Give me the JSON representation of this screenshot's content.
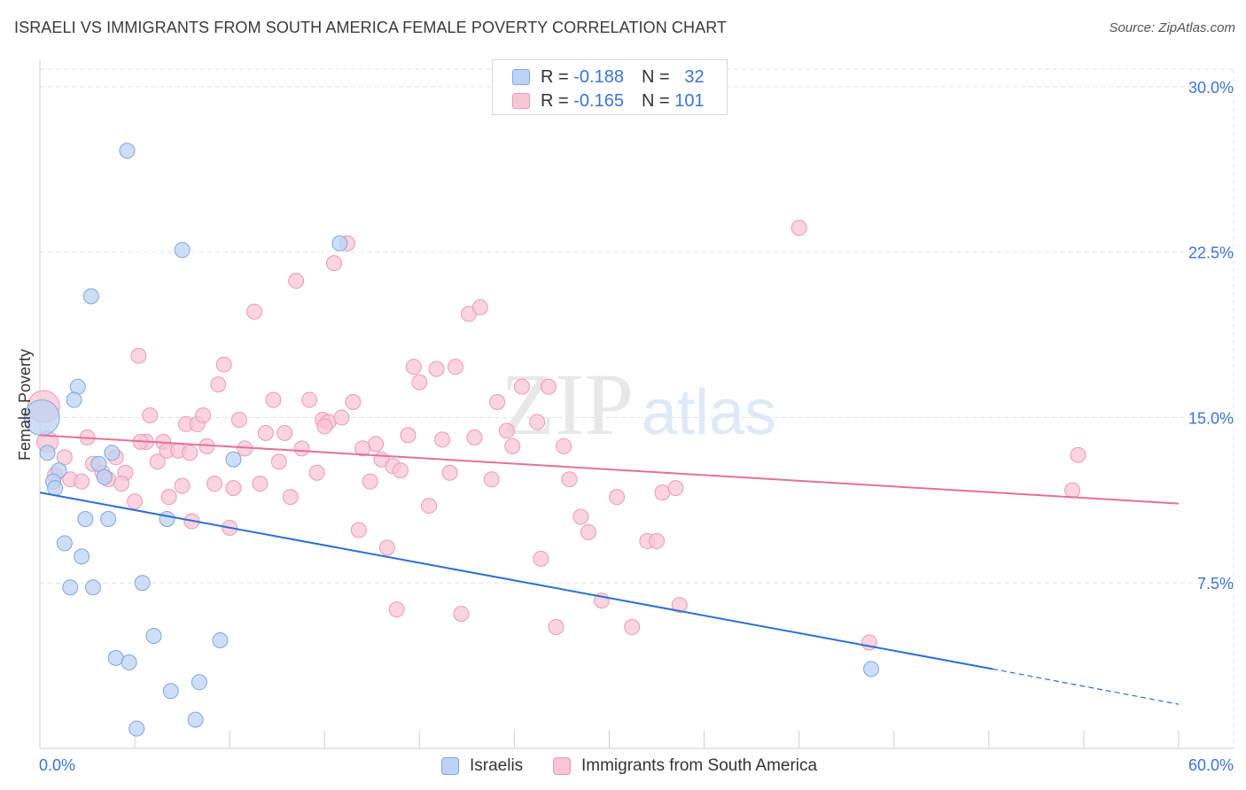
{
  "header": {
    "title": "ISRAELI VS IMMIGRANTS FROM SOUTH AMERICA FEMALE POVERTY CORRELATION CHART",
    "source": "Source: ZipAtlas.com"
  },
  "legend_stats": [
    {
      "r_label": "R =",
      "r_value": "-0.188",
      "n_label": "N =",
      "n_value": "32"
    },
    {
      "r_label": "R =",
      "r_value": "-0.165",
      "n_label": "N =",
      "n_value": "101"
    }
  ],
  "watermark": {
    "zip": "ZIP",
    "atlas": "atlas"
  },
  "colors": {
    "israelis_fill": "#bcd3f3",
    "israelis_stroke": "#7fa6df",
    "israelis_line": "#2c6fd1",
    "sa_fill": "#f8c6d5",
    "sa_stroke": "#ec9ab3",
    "sa_line": "#e3719a",
    "tick_label": "#3a74d6",
    "grid": "#e4e4e4"
  },
  "chart_data": {
    "type": "scatter",
    "title": "ISRAELI VS IMMIGRANTS FROM SOUTH AMERICA FEMALE POVERTY CORRELATION CHART",
    "xlabel": "",
    "ylabel": "Female Poverty",
    "xlim": [
      0,
      60
    ],
    "ylim": [
      0,
      30.8
    ],
    "x_tick_labels": [
      {
        "value": 0,
        "label": "0.0%"
      },
      {
        "value": 60,
        "label": "60.0%"
      }
    ],
    "y_ticks": [
      {
        "value": 7.5,
        "label": "7.5%"
      },
      {
        "value": 15.0,
        "label": "15.0%"
      },
      {
        "value": 22.5,
        "label": "22.5%"
      },
      {
        "value": 30.0,
        "label": "30.0%"
      }
    ],
    "grid": true,
    "legend_position": "bottom-center",
    "series": [
      {
        "name": "Israelis",
        "r": -0.188,
        "n": 32,
        "trend": {
          "x0": 0,
          "y0": 11.6,
          "x1": 50.2,
          "y1": 3.6,
          "dash_to_x": 60,
          "dash_to_y": 2.0
        },
        "points": [
          {
            "x": 4.6,
            "y": 27.1
          },
          {
            "x": 7.5,
            "y": 22.6
          },
          {
            "x": 15.8,
            "y": 22.9
          },
          {
            "x": 2.7,
            "y": 20.5
          },
          {
            "x": 2.0,
            "y": 16.4
          },
          {
            "x": 1.8,
            "y": 15.8
          },
          {
            "x": 0.1,
            "y": 15.0
          },
          {
            "x": 0.4,
            "y": 13.4
          },
          {
            "x": 1.0,
            "y": 12.6
          },
          {
            "x": 0.7,
            "y": 12.1
          },
          {
            "x": 0.8,
            "y": 11.8
          },
          {
            "x": 3.8,
            "y": 13.4
          },
          {
            "x": 3.1,
            "y": 12.9
          },
          {
            "x": 3.4,
            "y": 12.3
          },
          {
            "x": 10.2,
            "y": 13.1
          },
          {
            "x": 2.4,
            "y": 10.4
          },
          {
            "x": 3.6,
            "y": 10.4
          },
          {
            "x": 6.7,
            "y": 10.4
          },
          {
            "x": 1.3,
            "y": 9.3
          },
          {
            "x": 2.2,
            "y": 8.7
          },
          {
            "x": 1.6,
            "y": 7.3
          },
          {
            "x": 2.8,
            "y": 7.3
          },
          {
            "x": 5.4,
            "y": 7.5
          },
          {
            "x": 6.0,
            "y": 5.1
          },
          {
            "x": 9.5,
            "y": 4.9
          },
          {
            "x": 4.0,
            "y": 4.1
          },
          {
            "x": 4.7,
            "y": 3.9
          },
          {
            "x": 8.4,
            "y": 3.0
          },
          {
            "x": 6.9,
            "y": 2.6
          },
          {
            "x": 5.1,
            "y": 0.9
          },
          {
            "x": 8.2,
            "y": 1.3
          },
          {
            "x": 43.8,
            "y": 3.6
          }
        ]
      },
      {
        "name": "Immigrants from South America",
        "r": -0.165,
        "n": 101,
        "trend": {
          "x0": 0,
          "y0": 14.2,
          "x1": 60,
          "y1": 11.1
        },
        "points": [
          {
            "x": 0.2,
            "y": 15.5
          },
          {
            "x": 0.4,
            "y": 13.9
          },
          {
            "x": 0.8,
            "y": 12.4
          },
          {
            "x": 1.3,
            "y": 13.2
          },
          {
            "x": 1.6,
            "y": 12.2
          },
          {
            "x": 2.2,
            "y": 12.1
          },
          {
            "x": 2.5,
            "y": 14.1
          },
          {
            "x": 2.8,
            "y": 12.9
          },
          {
            "x": 3.3,
            "y": 12.5
          },
          {
            "x": 3.6,
            "y": 12.2
          },
          {
            "x": 4.0,
            "y": 13.2
          },
          {
            "x": 4.5,
            "y": 12.5
          },
          {
            "x": 5.0,
            "y": 11.2
          },
          {
            "x": 5.2,
            "y": 17.8
          },
          {
            "x": 5.6,
            "y": 13.9
          },
          {
            "x": 5.8,
            "y": 15.1
          },
          {
            "x": 6.2,
            "y": 13.0
          },
          {
            "x": 6.5,
            "y": 13.9
          },
          {
            "x": 6.7,
            "y": 13.5
          },
          {
            "x": 6.8,
            "y": 11.4
          },
          {
            "x": 7.3,
            "y": 13.5
          },
          {
            "x": 7.5,
            "y": 11.9
          },
          {
            "x": 7.7,
            "y": 14.7
          },
          {
            "x": 8.0,
            "y": 10.3
          },
          {
            "x": 8.3,
            "y": 14.7
          },
          {
            "x": 8.6,
            "y": 15.1
          },
          {
            "x": 8.8,
            "y": 13.7
          },
          {
            "x": 9.2,
            "y": 12.0
          },
          {
            "x": 9.4,
            "y": 16.5
          },
          {
            "x": 9.7,
            "y": 17.4
          },
          {
            "x": 10.0,
            "y": 10.0
          },
          {
            "x": 10.2,
            "y": 11.8
          },
          {
            "x": 10.5,
            "y": 14.9
          },
          {
            "x": 10.8,
            "y": 13.6
          },
          {
            "x": 11.3,
            "y": 19.8
          },
          {
            "x": 11.6,
            "y": 12.0
          },
          {
            "x": 11.9,
            "y": 14.3
          },
          {
            "x": 12.3,
            "y": 15.8
          },
          {
            "x": 12.6,
            "y": 13.0
          },
          {
            "x": 12.9,
            "y": 14.3
          },
          {
            "x": 13.2,
            "y": 11.4
          },
          {
            "x": 13.5,
            "y": 21.2
          },
          {
            "x": 13.8,
            "y": 13.6
          },
          {
            "x": 14.2,
            "y": 15.8
          },
          {
            "x": 14.6,
            "y": 12.5
          },
          {
            "x": 14.9,
            "y": 14.9
          },
          {
            "x": 15.2,
            "y": 14.8
          },
          {
            "x": 15.5,
            "y": 22.0
          },
          {
            "x": 15.9,
            "y": 15.0
          },
          {
            "x": 16.2,
            "y": 22.9
          },
          {
            "x": 16.5,
            "y": 15.7
          },
          {
            "x": 16.8,
            "y": 9.9
          },
          {
            "x": 17.4,
            "y": 12.1
          },
          {
            "x": 17.7,
            "y": 13.8
          },
          {
            "x": 18.0,
            "y": 13.1
          },
          {
            "x": 18.3,
            "y": 9.1
          },
          {
            "x": 18.6,
            "y": 12.8
          },
          {
            "x": 18.8,
            "y": 6.3
          },
          {
            "x": 19.0,
            "y": 12.6
          },
          {
            "x": 19.4,
            "y": 14.2
          },
          {
            "x": 19.7,
            "y": 17.3
          },
          {
            "x": 20.0,
            "y": 16.6
          },
          {
            "x": 20.5,
            "y": 11.0
          },
          {
            "x": 20.9,
            "y": 17.2
          },
          {
            "x": 21.2,
            "y": 14.0
          },
          {
            "x": 21.6,
            "y": 12.5
          },
          {
            "x": 21.9,
            "y": 17.3
          },
          {
            "x": 22.2,
            "y": 6.1
          },
          {
            "x": 22.6,
            "y": 19.7
          },
          {
            "x": 22.9,
            "y": 14.1
          },
          {
            "x": 23.2,
            "y": 20.0
          },
          {
            "x": 23.8,
            "y": 12.2
          },
          {
            "x": 24.1,
            "y": 15.7
          },
          {
            "x": 24.6,
            "y": 14.4
          },
          {
            "x": 24.9,
            "y": 13.7
          },
          {
            "x": 25.4,
            "y": 16.4
          },
          {
            "x": 26.2,
            "y": 14.8
          },
          {
            "x": 26.4,
            "y": 8.6
          },
          {
            "x": 26.8,
            "y": 16.4
          },
          {
            "x": 27.2,
            "y": 5.5
          },
          {
            "x": 27.6,
            "y": 13.7
          },
          {
            "x": 27.9,
            "y": 12.2
          },
          {
            "x": 28.5,
            "y": 10.5
          },
          {
            "x": 28.9,
            "y": 9.8
          },
          {
            "x": 29.6,
            "y": 6.7
          },
          {
            "x": 30.4,
            "y": 11.4
          },
          {
            "x": 31.2,
            "y": 5.5
          },
          {
            "x": 32.0,
            "y": 9.4
          },
          {
            "x": 32.5,
            "y": 9.4
          },
          {
            "x": 32.8,
            "y": 11.6
          },
          {
            "x": 33.5,
            "y": 11.8
          },
          {
            "x": 33.7,
            "y": 6.5
          },
          {
            "x": 40.0,
            "y": 23.6
          },
          {
            "x": 43.7,
            "y": 4.8
          },
          {
            "x": 54.4,
            "y": 11.7
          },
          {
            "x": 54.7,
            "y": 13.3
          },
          {
            "x": 5.3,
            "y": 13.9
          },
          {
            "x": 7.9,
            "y": 13.4
          },
          {
            "x": 15.0,
            "y": 14.6
          },
          {
            "x": 4.3,
            "y": 12.0
          },
          {
            "x": 17.0,
            "y": 13.6
          }
        ]
      }
    ]
  },
  "bottom_legend": [
    {
      "label": "Israelis"
    },
    {
      "label": "Immigrants from South America"
    }
  ]
}
